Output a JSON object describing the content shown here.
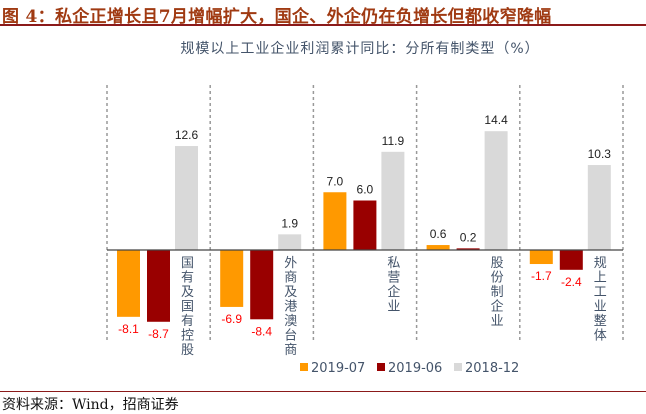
{
  "figure_title": "图 4：私企正增长且7月增幅扩大，国企、外企仍在负增长但都收窄降幅",
  "source": "资料来源：Wind，招商证券",
  "chart_data": {
    "type": "bar",
    "title": "规模以上工业企业利润累计同比：分所有制类型（%）",
    "categories": [
      "国有及国有控股",
      "外商及港澳台商",
      "私营企业",
      "股份制企业",
      "规上工业整体"
    ],
    "series": [
      {
        "name": "2019-07",
        "color": "#ff9900",
        "values": [
          -8.1,
          -6.9,
          7.0,
          0.6,
          -1.7
        ]
      },
      {
        "name": "2019-06",
        "color": "#990000",
        "values": [
          -8.7,
          -8.4,
          6.0,
          0.2,
          -2.4
        ]
      },
      {
        "name": "2018-12",
        "color": "#d9d9d9",
        "values": [
          12.6,
          1.9,
          11.9,
          14.4,
          10.3
        ]
      }
    ],
    "data_labels": true,
    "negative_label_color": "#ff0000",
    "legend_position": "bottom",
    "grid": false,
    "category_separators": "dashed"
  }
}
